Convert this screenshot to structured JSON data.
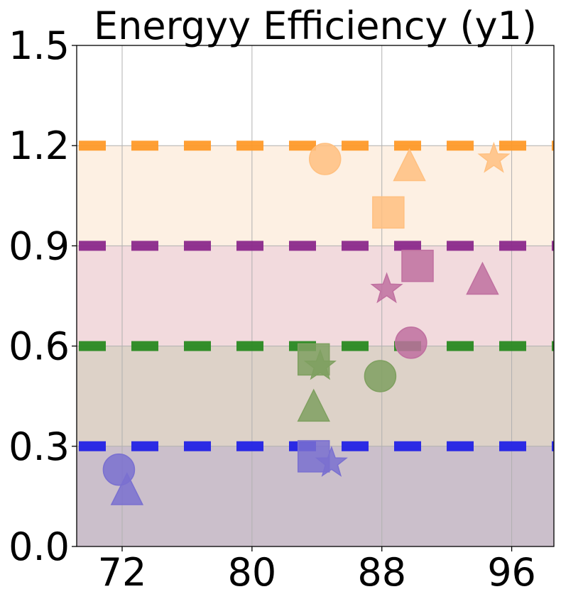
{
  "chart_data": {
    "type": "scatter",
    "title": "Energyy Efficiency (y1)",
    "xlabel": "",
    "ylabel": "",
    "xlim": [
      69.2,
      98.6
    ],
    "ylim": [
      0.0,
      1.5
    ],
    "xticks": [
      72,
      80,
      88,
      96
    ],
    "xtick_labels": [
      "72",
      "80",
      "88",
      "96"
    ],
    "yticks": [
      0.0,
      0.3,
      0.6,
      0.9,
      1.2,
      1.5
    ],
    "ytick_labels": [
      "0.0",
      "0.3",
      "0.6",
      "0.9",
      "1.2",
      "1.5"
    ],
    "grid": true,
    "bands": [
      {
        "from": 0.0,
        "to": 0.3,
        "color": "#cbbfcb"
      },
      {
        "from": 0.3,
        "to": 0.6,
        "color": "#ddd2c8"
      },
      {
        "from": 0.6,
        "to": 0.9,
        "color": "#f2dadd"
      },
      {
        "from": 0.9,
        "to": 1.2,
        "color": "#fdf0e3"
      }
    ],
    "thresholds": [
      {
        "y": 0.3,
        "color": "#2323e6"
      },
      {
        "y": 0.6,
        "color": "#2a8a22"
      },
      {
        "y": 0.9,
        "color": "#8c2a8c"
      },
      {
        "y": 1.2,
        "color": "#ff9a2a"
      }
    ],
    "series": [
      {
        "color": "#7a70d0",
        "points": [
          {
            "x": 71.8,
            "y": 0.23,
            "marker": "circle"
          },
          {
            "x": 72.3,
            "y": 0.17,
            "marker": "triangle"
          },
          {
            "x": 83.8,
            "y": 0.27,
            "marker": "square"
          },
          {
            "x": 84.9,
            "y": 0.25,
            "marker": "star"
          }
        ]
      },
      {
        "color": "#7fa060",
        "points": [
          {
            "x": 83.8,
            "y": 0.56,
            "marker": "square"
          },
          {
            "x": 84.2,
            "y": 0.54,
            "marker": "star"
          },
          {
            "x": 83.8,
            "y": 0.42,
            "marker": "triangle"
          },
          {
            "x": 87.9,
            "y": 0.51,
            "marker": "circle"
          }
        ]
      },
      {
        "color": "#c070a0",
        "points": [
          {
            "x": 89.8,
            "y": 0.61,
            "marker": "circle"
          },
          {
            "x": 90.2,
            "y": 0.84,
            "marker": "square"
          },
          {
            "x": 88.3,
            "y": 0.77,
            "marker": "star"
          },
          {
            "x": 94.2,
            "y": 0.8,
            "marker": "triangle"
          }
        ]
      },
      {
        "color": "#ffc080",
        "points": [
          {
            "x": 84.5,
            "y": 1.16,
            "marker": "circle"
          },
          {
            "x": 89.7,
            "y": 1.14,
            "marker": "triangle"
          },
          {
            "x": 94.9,
            "y": 1.16,
            "marker": "star"
          },
          {
            "x": 88.4,
            "y": 1.0,
            "marker": "square"
          }
        ]
      }
    ]
  }
}
